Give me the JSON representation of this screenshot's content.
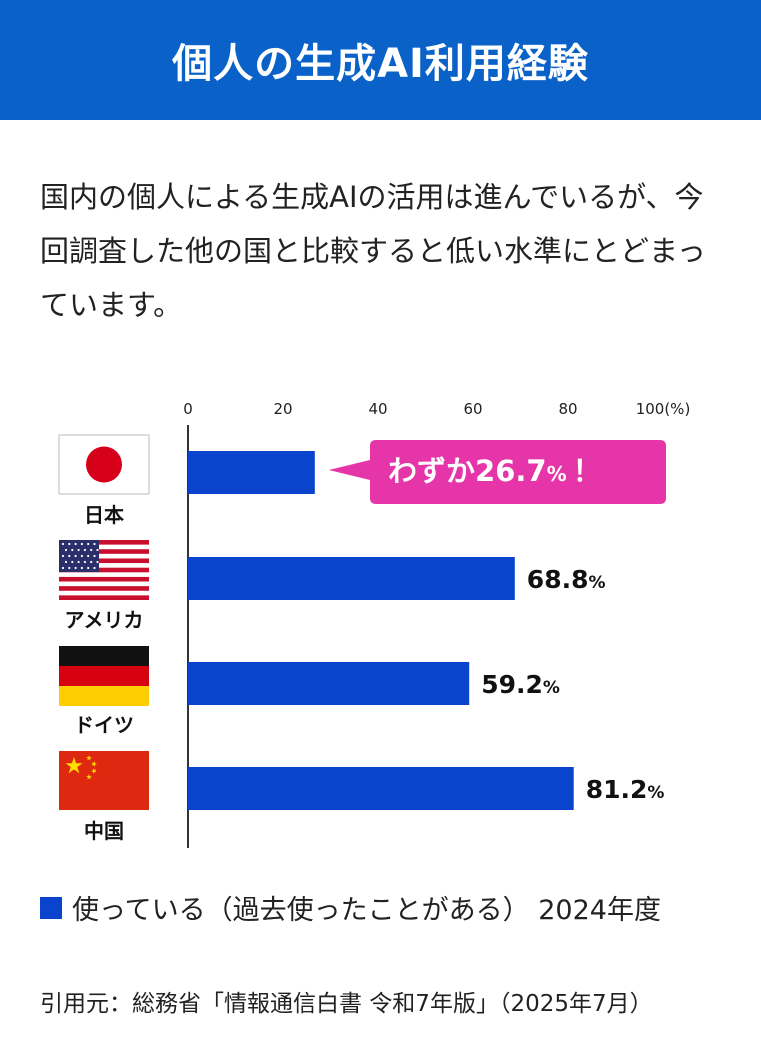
{
  "header": {
    "title": "個人の生成AI利用経験"
  },
  "intro": {
    "text": "国内の個人による生成AIの活用は進んでいるが、今回調査した他の国と比較すると低い水準にとどまっています。"
  },
  "chart_data": {
    "type": "bar",
    "orientation": "horizontal",
    "categories": [
      "日本",
      "アメリカ",
      "ドイツ",
      "中国"
    ],
    "values": [
      26.7,
      68.8,
      59.2,
      81.2
    ],
    "value_labels": [
      "26.7",
      "68.8",
      "59.2",
      "81.2"
    ],
    "percent_sign": "%",
    "callout": {
      "prefix": "わずか",
      "value": "26.7",
      "pct": "%",
      "suffix": "！"
    },
    "xlim": [
      0,
      100
    ],
    "ticks": [
      "0",
      "20",
      "40",
      "60",
      "80",
      "100(%)"
    ],
    "series_name": "使っている(過去使ったことがある) 2024年度",
    "colors": {
      "bar": "#0a44cc",
      "callout": "#e535a8",
      "header": "#0a62c8"
    }
  },
  "legend": {
    "label": "使っている（過去使ったことがある） 2024年度"
  },
  "source": {
    "text": "引用元：総務省「情報通信白書 令和7年版」（2025年7月）"
  },
  "flags": [
    "japan-flag",
    "usa-flag",
    "germany-flag",
    "china-flag"
  ]
}
